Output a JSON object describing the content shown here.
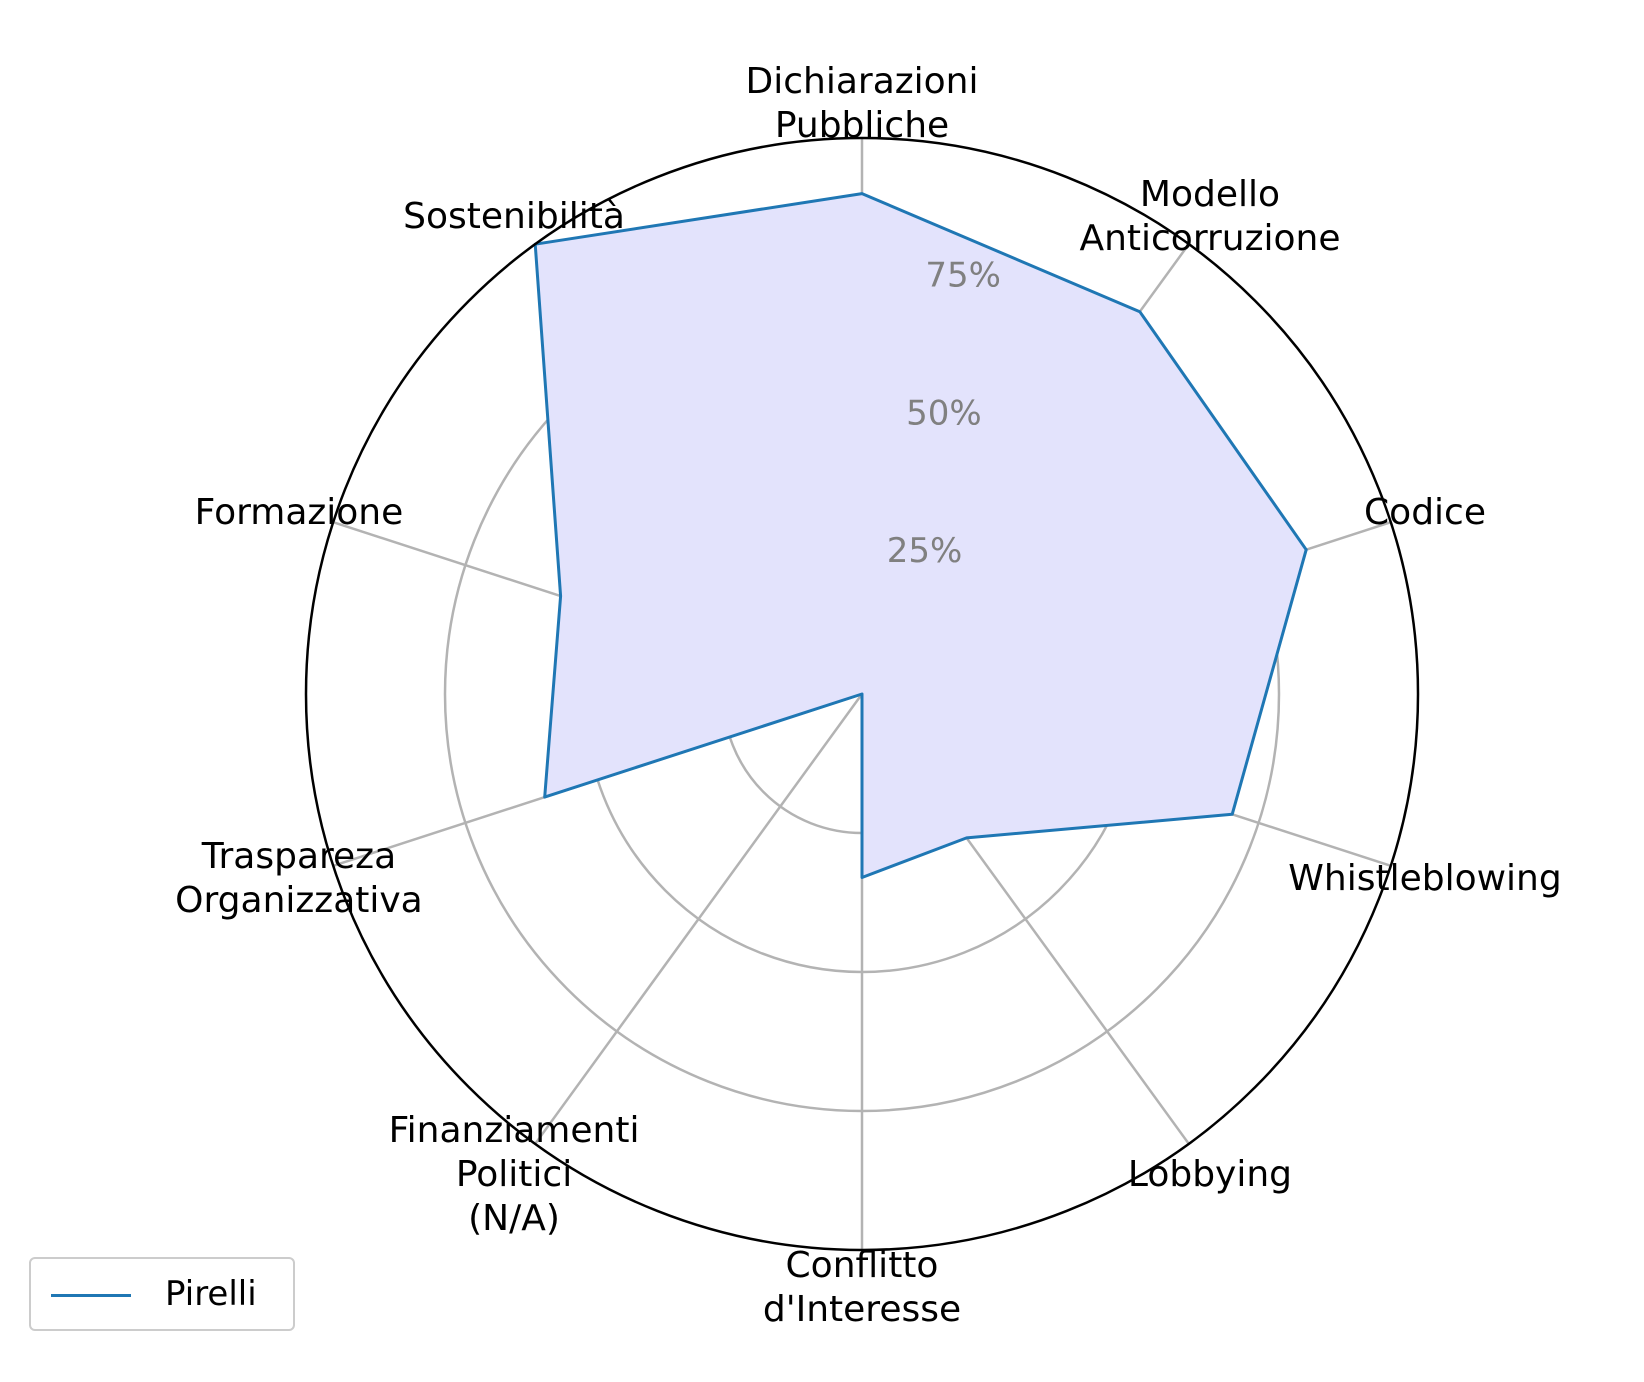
{
  "chart_data": {
    "type": "radar",
    "categories": [
      "Dichiarazioni\nPubbliche",
      "Modello\nAnticorruzione",
      "Codice",
      "Whistleblowing",
      "Lobbying",
      "Conflitto\nd'Interesse",
      "Finanziamenti\nPolitici\n(N/A)",
      "Traspareza\nOrganizzativa",
      "Formazione",
      "Sostenibilità"
    ],
    "series": [
      {
        "name": "Pirelli",
        "values": [
          90,
          85,
          84,
          70,
          32,
          33,
          0,
          60,
          57,
          100
        ]
      }
    ],
    "rlim": [
      0,
      100
    ],
    "radial_ticks": [
      25,
      50,
      75
    ],
    "radial_tick_labels": [
      "25%",
      "50%",
      "75%"
    ],
    "grid": true,
    "legend": "lower-left",
    "colors": {
      "line": "#1f77b4",
      "fill": "#e3e3fc",
      "grid": "#b3b3b3",
      "tick_label": "#808080"
    }
  }
}
